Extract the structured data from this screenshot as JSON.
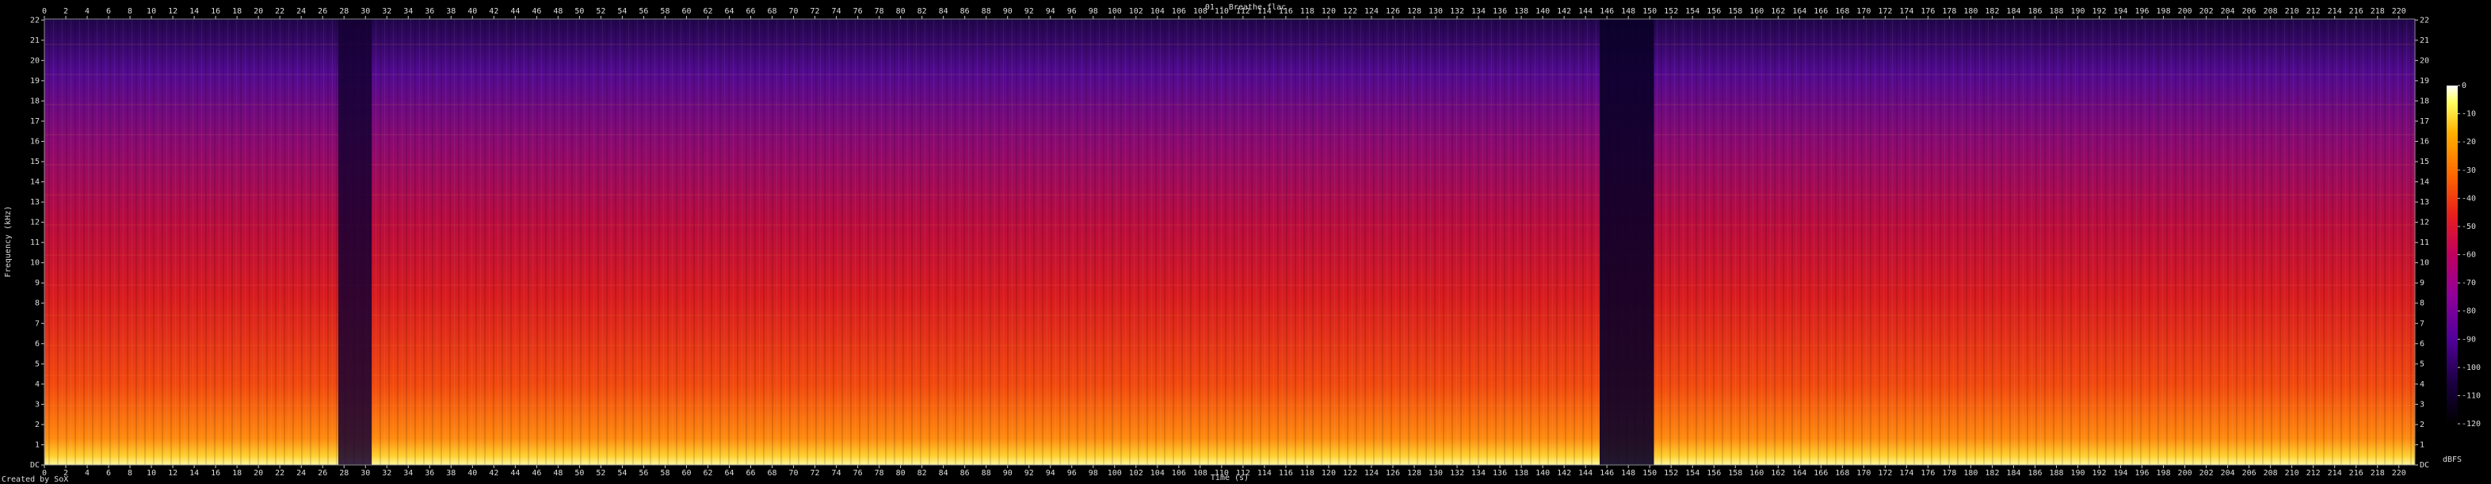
{
  "chart_data": {
    "type": "spectrogram",
    "title": "01 - Breathe.flac",
    "x_label": "Time (s)",
    "y_label": "Frequency (kHz)",
    "colorbar_label": "dBFS",
    "footer": "Created by SoX",
    "xlim": [
      0,
      221.5
    ],
    "xticks": [
      0,
      2,
      4,
      6,
      8,
      10,
      12,
      14,
      16,
      18,
      20,
      22,
      24,
      26,
      28,
      30,
      32,
      34,
      36,
      38,
      40,
      42,
      44,
      46,
      48,
      50,
      52,
      54,
      56,
      58,
      60,
      62,
      64,
      66,
      68,
      70,
      72,
      74,
      76,
      78,
      80,
      82,
      84,
      86,
      88,
      90,
      92,
      94,
      96,
      98,
      100,
      102,
      104,
      106,
      108,
      110,
      112,
      114,
      116,
      118,
      120,
      122,
      124,
      126,
      128,
      130,
      132,
      134,
      136,
      138,
      140,
      142,
      144,
      146,
      148,
      150,
      152,
      154,
      156,
      158,
      160,
      162,
      164,
      166,
      168,
      170,
      172,
      174,
      176,
      178,
      180,
      182,
      184,
      186,
      188,
      190,
      192,
      194,
      196,
      198,
      200,
      202,
      204,
      206,
      208,
      210,
      212,
      214,
      216,
      218,
      220
    ],
    "ylim": [
      0,
      22.05
    ],
    "yticks": [
      {
        "value": 0,
        "label": "DC"
      },
      1,
      2,
      3,
      4,
      5,
      6,
      7,
      8,
      9,
      10,
      11,
      12,
      13,
      14,
      15,
      16,
      17,
      18,
      19,
      20,
      21,
      22
    ],
    "clim": [
      -120,
      0
    ],
    "cticks": [
      0,
      -10,
      -20,
      -30,
      -40,
      -50,
      -60,
      -70,
      -80,
      -90,
      -100,
      -110,
      -120
    ],
    "grid": false
  }
}
